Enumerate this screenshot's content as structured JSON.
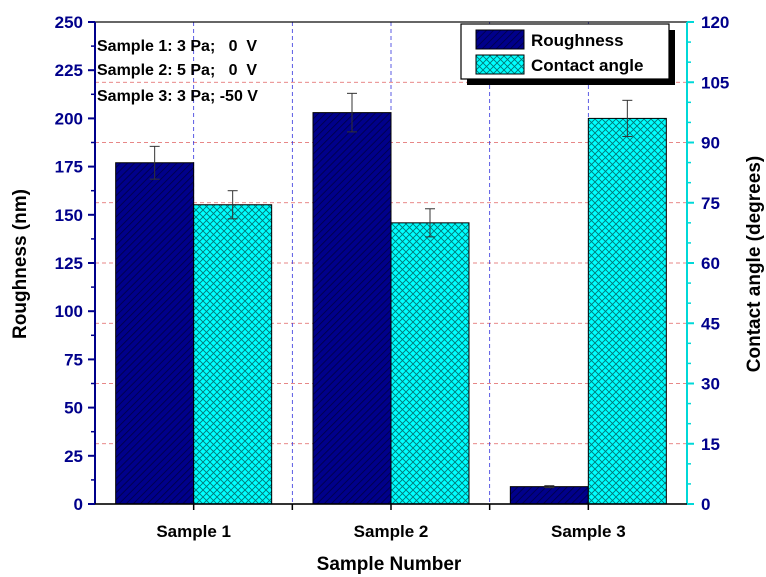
{
  "chart_data": {
    "type": "bar",
    "categories": [
      "Sample 1",
      "Sample 2",
      "Sample 3"
    ],
    "xlabel": "Sample Number",
    "ylabel_left": "Roughness (nm)",
    "ylabel_right": "Contact angle (degrees)",
    "ylim_left": [
      0,
      250
    ],
    "ylim_right": [
      0,
      120
    ],
    "yticks_left": [
      0,
      25,
      50,
      75,
      100,
      125,
      150,
      175,
      200,
      225,
      250
    ],
    "yticks_right": [
      0,
      15,
      30,
      45,
      60,
      75,
      90,
      105,
      120
    ],
    "grid": true,
    "series": [
      {
        "name": "Roughness",
        "axis": "left",
        "color": "#00008b",
        "pattern": "diagonal-lines",
        "values": [
          177,
          203,
          9
        ],
        "errors": [
          8.5,
          10,
          0.5
        ]
      },
      {
        "name": "Contact angle",
        "axis": "right",
        "color": "#00ffff",
        "pattern": "crosshatch",
        "values": [
          74.5,
          70,
          96
        ],
        "errors": [
          3.5,
          3.5,
          4.5
        ]
      }
    ],
    "legend_position": "top-right",
    "annotations": [
      "Sample 1: 3 Pa;   0  V",
      "Sample 2: 5 Pa;   0  V",
      "Sample 3: 3 Pa; -50 V"
    ],
    "colors": {
      "left_axis": "#00008b",
      "right_axis": "#00d8d8",
      "vgrid": "#3333dd",
      "hgrid": "#e06060"
    }
  }
}
